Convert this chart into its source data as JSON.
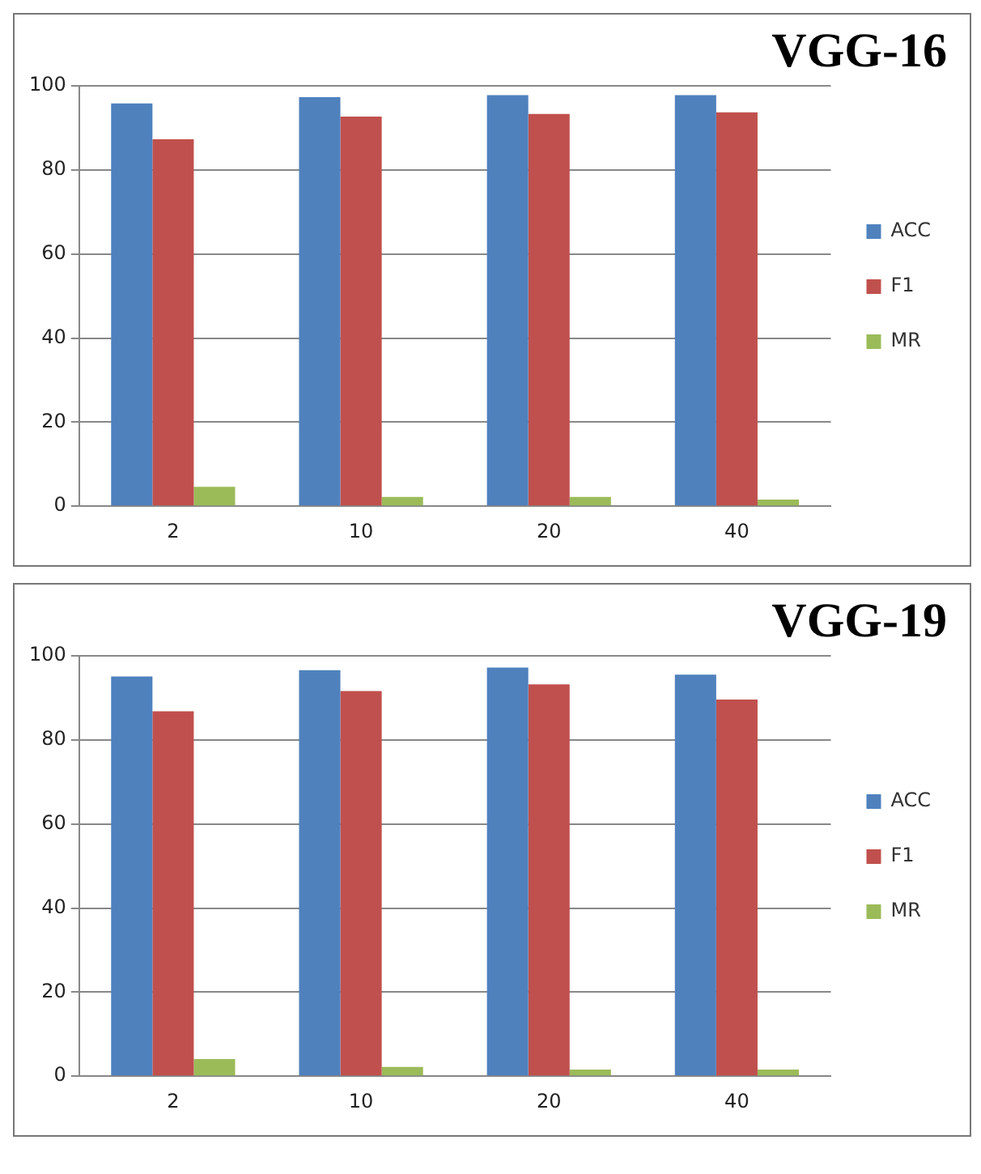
{
  "chart_data": [
    {
      "type": "bar",
      "title": "VGG-16",
      "categories": [
        "2",
        "10",
        "20",
        "40"
      ],
      "series": [
        {
          "name": "ACC",
          "color": "#4f81bd",
          "values": [
            95.8,
            97.3,
            97.8,
            97.8
          ]
        },
        {
          "name": "F1",
          "color": "#c0504d",
          "values": [
            87.3,
            92.7,
            93.3,
            93.7
          ]
        },
        {
          "name": "MR",
          "color": "#9bbb59",
          "values": [
            4.6,
            2.2,
            2.2,
            1.6
          ]
        }
      ],
      "ylim": [
        0,
        100
      ],
      "yticks": [
        0,
        20,
        40,
        60,
        80,
        100
      ],
      "grid": "y",
      "legend": "right"
    },
    {
      "type": "bar",
      "title": "VGG-19",
      "categories": [
        "2",
        "10",
        "20",
        "40"
      ],
      "series": [
        {
          "name": "ACC",
          "color": "#4f81bd",
          "values": [
            95.1,
            96.6,
            97.2,
            95.5
          ]
        },
        {
          "name": "F1",
          "color": "#c0504d",
          "values": [
            86.8,
            91.6,
            93.2,
            89.6
          ]
        },
        {
          "name": "MR",
          "color": "#9bbb59",
          "values": [
            4.1,
            2.2,
            1.6,
            1.6
          ]
        }
      ],
      "ylim": [
        0,
        100
      ],
      "yticks": [
        0,
        20,
        40,
        60,
        80,
        100
      ],
      "grid": "y",
      "legend": "right"
    }
  ]
}
